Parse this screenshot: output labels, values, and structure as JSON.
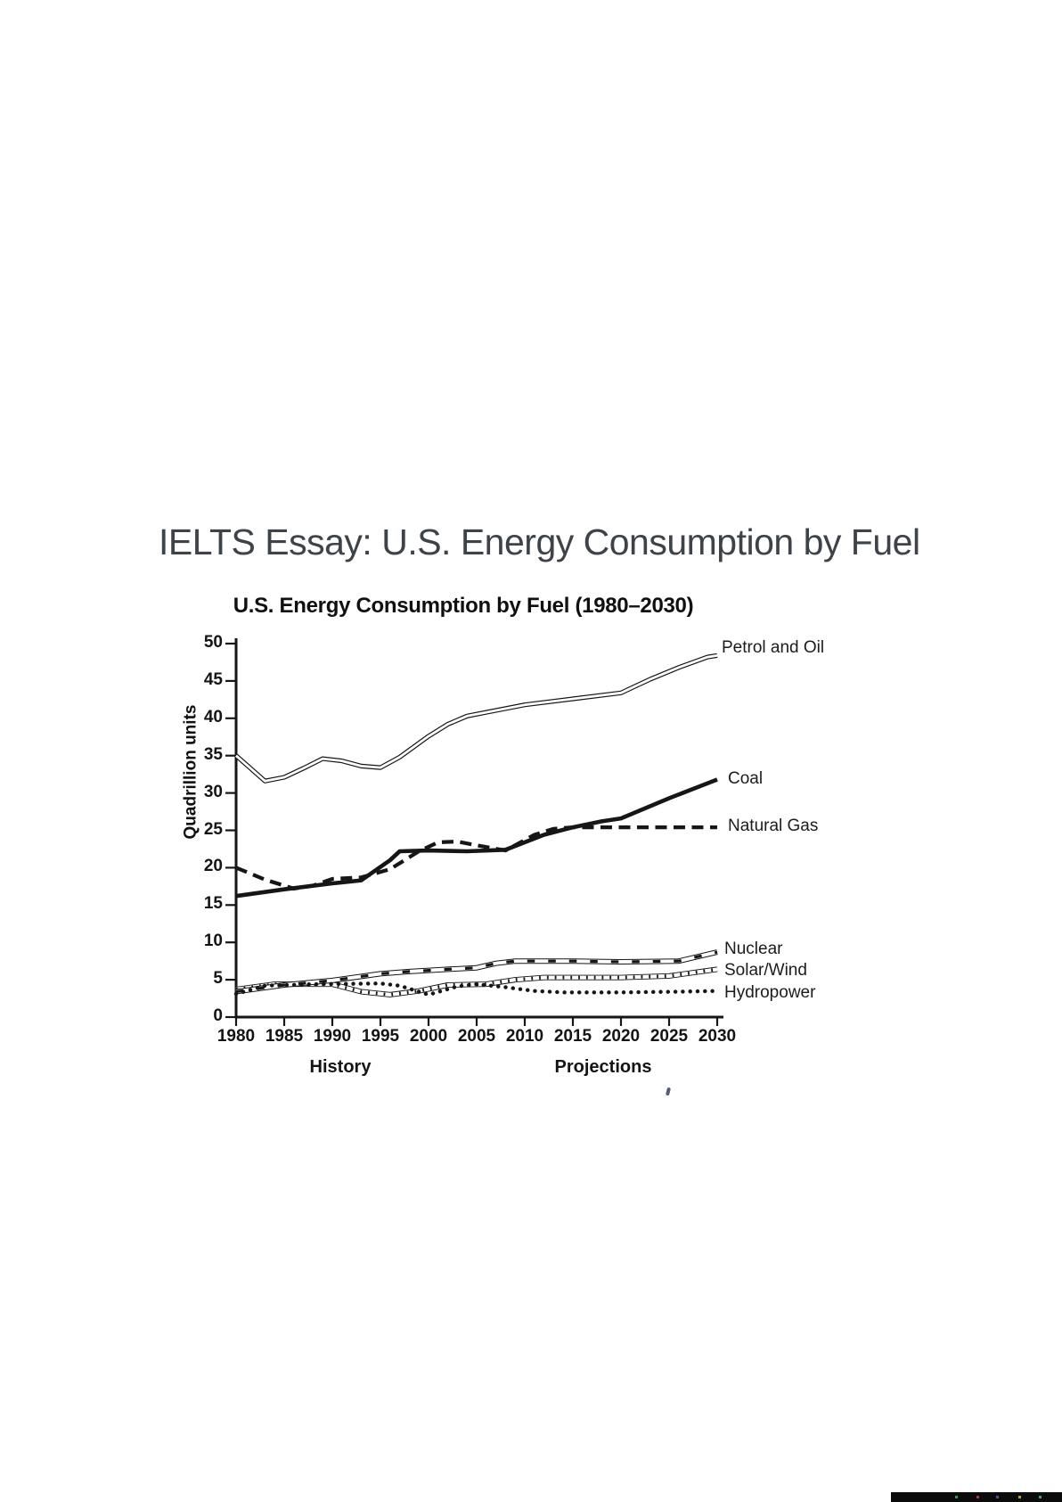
{
  "page": {
    "title": "IELTS Essay: U.S. Energy Consumption by Fuel"
  },
  "chart": {
    "title": "U.S. Energy Consumption by Fuel (1980–2030)",
    "y_axis_label": "Quadrillion units",
    "phase_labels": {
      "history": "History",
      "projections": "Projections"
    },
    "ink_color": "#161616"
  },
  "chart_data": {
    "type": "line",
    "title": "U.S. Energy Consumption by Fuel (1980–2030)",
    "xlabel": "",
    "ylabel": "Quadrillion units",
    "xlim": [
      1980,
      2030
    ],
    "ylim": [
      0,
      50
    ],
    "x_ticks": [
      1980,
      1985,
      1990,
      1995,
      2000,
      2005,
      2010,
      2015,
      2020,
      2025,
      2030
    ],
    "y_ticks": [
      0,
      5,
      10,
      15,
      20,
      25,
      30,
      35,
      40,
      45,
      50
    ],
    "grid": false,
    "legend_position": "labels-at-line-ends-right",
    "annotations": [
      "History (1980–2008)",
      "Projections (2008–2030)"
    ],
    "series": [
      {
        "name": "Petrol and Oil",
        "style": "double-line",
        "points": [
          [
            1980,
            35.0
          ],
          [
            1983,
            31.6
          ],
          [
            1985,
            32.1
          ],
          [
            1987,
            33.3
          ],
          [
            1989,
            34.6
          ],
          [
            1991,
            34.3
          ],
          [
            1993,
            33.6
          ],
          [
            1995,
            33.4
          ],
          [
            1997,
            34.8
          ],
          [
            2000,
            37.6
          ],
          [
            2002,
            39.2
          ],
          [
            2004,
            40.3
          ],
          [
            2006,
            40.8
          ],
          [
            2010,
            41.8
          ],
          [
            2015,
            42.6
          ],
          [
            2020,
            43.4
          ],
          [
            2023,
            45.2
          ],
          [
            2026,
            46.8
          ],
          [
            2029,
            48.2
          ],
          [
            2030,
            48.4
          ]
        ]
      },
      {
        "name": "Coal",
        "style": "thick-solid",
        "points": [
          [
            1980,
            16.2
          ],
          [
            1985,
            17.1
          ],
          [
            1990,
            17.9
          ],
          [
            1993,
            18.3
          ],
          [
            1996,
            21.0
          ],
          [
            1997,
            22.2
          ],
          [
            2000,
            22.3
          ],
          [
            2004,
            22.2
          ],
          [
            2008,
            22.4
          ],
          [
            2012,
            24.4
          ],
          [
            2015,
            25.4
          ],
          [
            2018,
            26.2
          ],
          [
            2020,
            26.6
          ],
          [
            2025,
            29.3
          ],
          [
            2030,
            31.8
          ]
        ]
      },
      {
        "name": "Natural Gas",
        "style": "dashed",
        "points": [
          [
            1980,
            20.0
          ],
          [
            1983,
            18.4
          ],
          [
            1986,
            17.2
          ],
          [
            1988,
            17.6
          ],
          [
            1990,
            18.5
          ],
          [
            1993,
            18.7
          ],
          [
            1996,
            19.8
          ],
          [
            1999,
            22.2
          ],
          [
            2001,
            23.4
          ],
          [
            2003,
            23.5
          ],
          [
            2005,
            23.0
          ],
          [
            2008,
            22.3
          ],
          [
            2011,
            24.4
          ],
          [
            2013,
            25.2
          ],
          [
            2015,
            25.4
          ],
          [
            2020,
            25.4
          ],
          [
            2025,
            25.4
          ],
          [
            2030,
            25.4
          ]
        ]
      },
      {
        "name": "Nuclear",
        "style": "tube-squares",
        "points": [
          [
            1980,
            3.4
          ],
          [
            1985,
            4.3
          ],
          [
            1990,
            4.9
          ],
          [
            1995,
            5.8
          ],
          [
            1998,
            6.1
          ],
          [
            2002,
            6.4
          ],
          [
            2005,
            6.6
          ],
          [
            2007,
            7.2
          ],
          [
            2009,
            7.5
          ],
          [
            2015,
            7.5
          ],
          [
            2020,
            7.4
          ],
          [
            2026,
            7.5
          ],
          [
            2030,
            8.7
          ]
        ]
      },
      {
        "name": "Solar/Wind",
        "style": "tube-hatched",
        "points": [
          [
            1980,
            3.7
          ],
          [
            1984,
            4.4
          ],
          [
            1990,
            4.4
          ],
          [
            1993,
            3.4
          ],
          [
            1996,
            3.0
          ],
          [
            1999,
            3.5
          ],
          [
            2002,
            4.3
          ],
          [
            2006,
            4.4
          ],
          [
            2009,
            5.0
          ],
          [
            2012,
            5.3
          ],
          [
            2020,
            5.3
          ],
          [
            2025,
            5.5
          ],
          [
            2030,
            6.4
          ]
        ]
      },
      {
        "name": "Hydropower",
        "style": "dotted",
        "points": [
          [
            1980,
            3.1
          ],
          [
            1983,
            4.2
          ],
          [
            1988,
            4.4
          ],
          [
            1995,
            4.5
          ],
          [
            1997,
            4.2
          ],
          [
            2000,
            3.0
          ],
          [
            2003,
            4.1
          ],
          [
            2005,
            4.4
          ],
          [
            2008,
            4.0
          ],
          [
            2011,
            3.5
          ],
          [
            2014,
            3.3
          ],
          [
            2020,
            3.3
          ],
          [
            2026,
            3.4
          ],
          [
            2030,
            3.5
          ]
        ]
      }
    ]
  }
}
